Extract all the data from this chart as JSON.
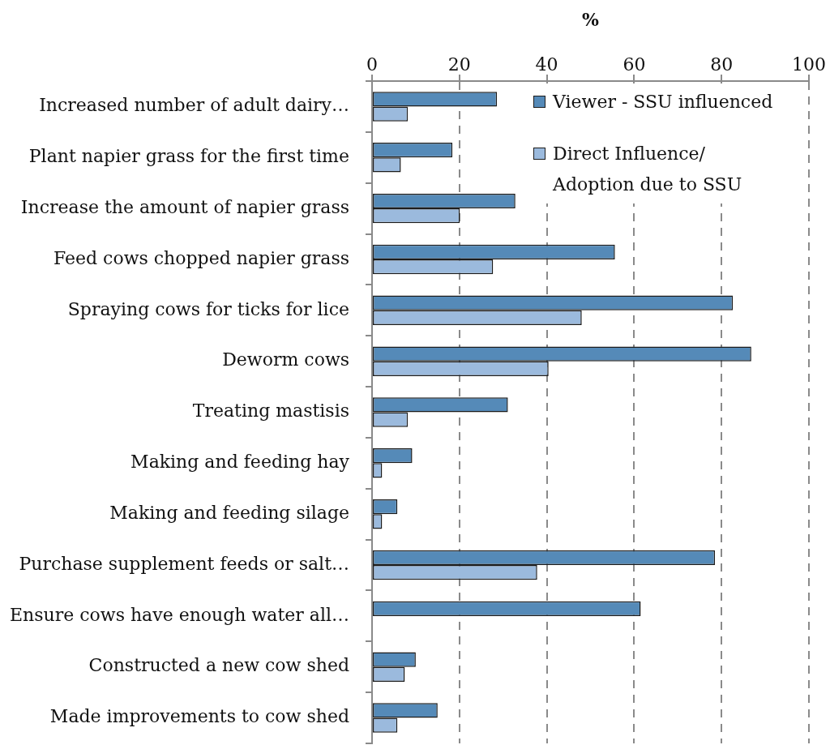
{
  "chart_data": {
    "type": "bar",
    "orientation": "horizontal",
    "xlabel": "%",
    "categories": [
      "Increased number of adult dairy…",
      "Plant napier grass for the first time",
      "Increase the amount of napier grass",
      "Feed cows chopped napier grass",
      "Spraying cows for ticks for lice",
      "Deworm cows",
      "Treating mastisis",
      "Making and feeding hay",
      "Making and feeding silage",
      "Purchase supplement feeds or salt…",
      "Ensure cows have enough water all…",
      "Constructed a new cow shed",
      "Made improvements to cow shed"
    ],
    "series": [
      {
        "name": "Viewer - SSU influenced",
        "color": "#558ab8",
        "values": [
          28.6,
          18.4,
          32.8,
          55.6,
          82.6,
          86.8,
          31.1,
          9.2,
          5.8,
          78.5,
          61.5,
          10.0,
          15.0
        ]
      },
      {
        "name": "Direct Influence/ Adoption due to SSU",
        "color": "#9bbadd",
        "values": [
          8.2,
          6.6,
          20.1,
          27.7,
          48.0,
          40.4,
          8.2,
          2.3,
          2.3,
          37.8,
          null,
          7.5,
          5.8
        ]
      }
    ],
    "xlim": [
      0,
      100
    ],
    "xticks": [
      0,
      20,
      40,
      60,
      80,
      100
    ],
    "grid": "x",
    "legend": "top right"
  }
}
